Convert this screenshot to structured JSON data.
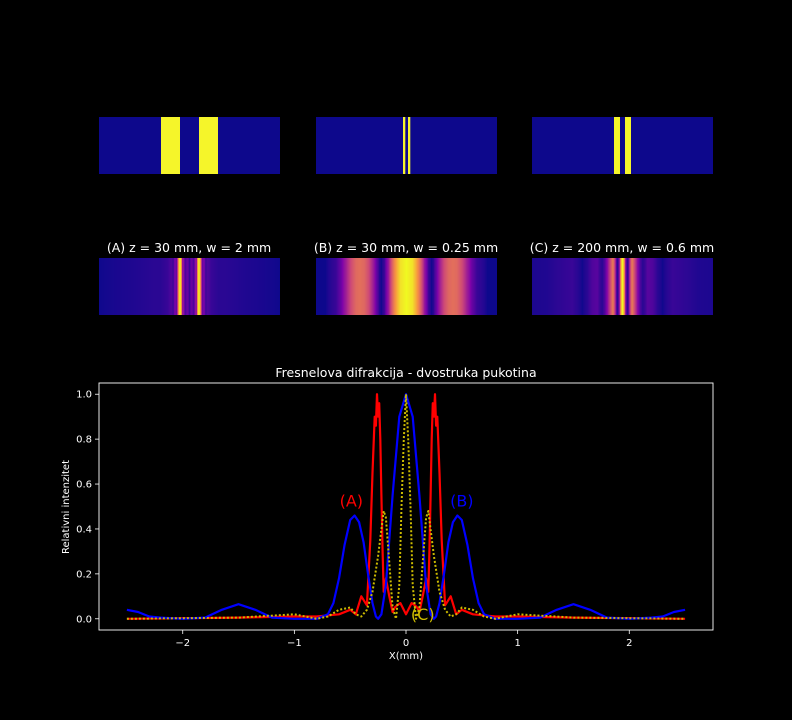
{
  "panels": [
    {
      "caption": "(A) z = 30 mm, w = 2 mm",
      "slit_color": "#f5f52a",
      "bg_color": "#0d088c"
    },
    {
      "caption": "(B) z = 30 mm, w = 0.25 mm",
      "slit_color": "#f5f52a",
      "bg_color": "#0d088c"
    },
    {
      "caption": "(C) z = 200 mm, w = 0.6 mm",
      "slit_color": "#f5f52a",
      "bg_color": "#0d088c"
    }
  ],
  "chart_data": {
    "type": "line",
    "title": "Fresnelova difrakcija - dvostruka pukotina",
    "xlabel": "X(mm)",
    "ylabel": "Relativni intenzitet",
    "xlim": [
      -2.75,
      2.75
    ],
    "ylim": [
      -0.05,
      1.05
    ],
    "xticks": [
      -2,
      -1,
      0,
      1,
      2
    ],
    "xtick_labels": [
      "−2",
      "−1",
      "0",
      "1",
      "2"
    ],
    "yticks": [
      0.0,
      0.2,
      0.4,
      0.6,
      0.8,
      1.0
    ],
    "ytick_labels": [
      "0.0",
      "0.2",
      "0.4",
      "0.6",
      "0.8",
      "1.0"
    ],
    "grid": false,
    "series": [
      {
        "name": "(A)",
        "color": "#ff0000",
        "style": "solid",
        "x": [
          -2.5,
          -1.5,
          -1.0,
          -0.8,
          -0.6,
          -0.5,
          -0.45,
          -0.4,
          -0.35,
          -0.32,
          -0.3,
          -0.28,
          -0.27,
          -0.26,
          -0.25,
          -0.24,
          -0.23,
          -0.22,
          -0.21,
          -0.2,
          -0.18,
          -0.15,
          -0.12,
          -0.1,
          -0.08,
          -0.05,
          0.0,
          0.05,
          0.08,
          0.1,
          0.12,
          0.15,
          0.18,
          0.2,
          0.21,
          0.22,
          0.23,
          0.24,
          0.25,
          0.26,
          0.27,
          0.28,
          0.3,
          0.32,
          0.35,
          0.4,
          0.45,
          0.5,
          0.6,
          0.8,
          1.0,
          1.5,
          2.5
        ],
        "y": [
          0.0,
          0.005,
          0.01,
          0.01,
          0.02,
          0.04,
          0.02,
          0.1,
          0.06,
          0.35,
          0.65,
          0.9,
          0.86,
          1.0,
          0.9,
          0.96,
          0.8,
          0.55,
          0.3,
          0.12,
          0.18,
          0.1,
          0.03,
          0.05,
          0.06,
          0.07,
          0.02,
          0.07,
          0.06,
          0.05,
          0.03,
          0.1,
          0.18,
          0.12,
          0.3,
          0.55,
          0.8,
          0.96,
          0.9,
          1.0,
          0.86,
          0.9,
          0.65,
          0.35,
          0.06,
          0.1,
          0.02,
          0.04,
          0.02,
          0.01,
          0.01,
          0.005,
          0.0
        ]
      },
      {
        "name": "(B)",
        "color": "#0000ff",
        "style": "solid",
        "x": [
          -2.5,
          -2.4,
          -2.3,
          -2.2,
          -2.0,
          -1.8,
          -1.65,
          -1.5,
          -1.35,
          -1.2,
          -1.0,
          -0.8,
          -0.7,
          -0.65,
          -0.6,
          -0.55,
          -0.5,
          -0.46,
          -0.42,
          -0.38,
          -0.34,
          -0.3,
          -0.27,
          -0.25,
          -0.22,
          -0.18,
          -0.12,
          -0.06,
          0.0,
          0.06,
          0.12,
          0.18,
          0.22,
          0.25,
          0.27,
          0.3,
          0.34,
          0.38,
          0.42,
          0.46,
          0.5,
          0.55,
          0.6,
          0.65,
          0.7,
          0.8,
          1.0,
          1.2,
          1.35,
          1.5,
          1.65,
          1.8,
          2.0,
          2.2,
          2.3,
          2.4,
          2.5
        ],
        "y": [
          0.04,
          0.03,
          0.01,
          0.005,
          0.0,
          0.005,
          0.04,
          0.065,
          0.04,
          0.005,
          0.0,
          0.0,
          0.02,
          0.07,
          0.18,
          0.33,
          0.44,
          0.46,
          0.43,
          0.34,
          0.2,
          0.07,
          0.01,
          0.0,
          0.02,
          0.15,
          0.55,
          0.9,
          1.0,
          0.9,
          0.55,
          0.15,
          0.02,
          0.0,
          0.01,
          0.07,
          0.2,
          0.34,
          0.43,
          0.46,
          0.44,
          0.33,
          0.18,
          0.07,
          0.02,
          0.0,
          0.0,
          0.005,
          0.04,
          0.065,
          0.04,
          0.005,
          0.0,
          0.005,
          0.01,
          0.03,
          0.04
        ]
      },
      {
        "name": "(C)",
        "color": "#ccbb00",
        "style": "dotted",
        "x": [
          -2.5,
          -1.5,
          -1.0,
          -0.9,
          -0.8,
          -0.7,
          -0.6,
          -0.5,
          -0.45,
          -0.4,
          -0.35,
          -0.3,
          -0.25,
          -0.2,
          -0.18,
          -0.15,
          -0.12,
          -0.09,
          -0.06,
          -0.04,
          -0.02,
          0.0,
          0.02,
          0.04,
          0.06,
          0.09,
          0.12,
          0.15,
          0.18,
          0.2,
          0.25,
          0.3,
          0.35,
          0.4,
          0.45,
          0.5,
          0.6,
          0.7,
          0.8,
          0.9,
          1.0,
          1.5,
          2.5
        ],
        "y": [
          0.0,
          0.005,
          0.02,
          0.01,
          0.0,
          0.01,
          0.04,
          0.05,
          0.02,
          0.01,
          0.04,
          0.12,
          0.28,
          0.48,
          0.45,
          0.25,
          0.05,
          0.0,
          0.15,
          0.5,
          0.8,
          1.0,
          0.8,
          0.5,
          0.15,
          0.0,
          0.05,
          0.25,
          0.45,
          0.48,
          0.28,
          0.12,
          0.04,
          0.01,
          0.02,
          0.05,
          0.04,
          0.01,
          0.0,
          0.01,
          0.02,
          0.005,
          0.0
        ]
      }
    ],
    "annotations": [
      {
        "text": "(A)",
        "x": -0.49,
        "y": 0.5,
        "color": "#ff0000"
      },
      {
        "text": "(B)",
        "x": 0.5,
        "y": 0.5,
        "color": "#0000ff"
      },
      {
        "text": "(C)",
        "x": 0.15,
        "y": 0.0,
        "color": "#ccbb00"
      }
    ]
  }
}
